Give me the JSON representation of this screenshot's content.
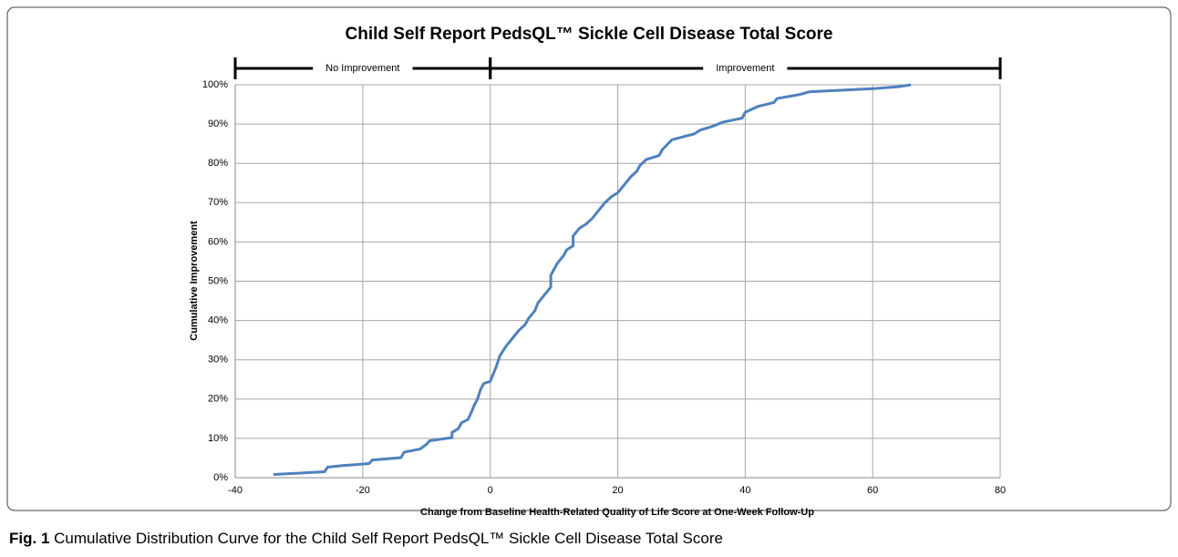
{
  "chart_data": {
    "type": "line",
    "title": "Child Self Report PedsQL™ Sickle Cell Disease Total Score",
    "xlabel": "Change from Baseline Health-Related Quality of Life Score at One-Week Follow-Up",
    "ylabel": "Cumulative Improvement",
    "annotations": [
      {
        "text": "No Improvement",
        "from": -40,
        "to": 0
      },
      {
        "text": "Improvement",
        "from": 0,
        "to": 80
      }
    ],
    "xlim": [
      -40,
      80
    ],
    "xticks": [
      -40,
      -20,
      0,
      20,
      40,
      60,
      80
    ],
    "ylim": [
      0,
      100
    ],
    "yticks": [
      {
        "value": 0,
        "label": "0%"
      },
      {
        "value": 10,
        "label": "10%"
      },
      {
        "value": 20,
        "label": "20%"
      },
      {
        "value": 30,
        "label": "30%"
      },
      {
        "value": 40,
        "label": "40%"
      },
      {
        "value": 50,
        "label": "50%"
      },
      {
        "value": 60,
        "label": "60%"
      },
      {
        "value": 70,
        "label": "70%"
      },
      {
        "value": 80,
        "label": "80%"
      },
      {
        "value": 90,
        "label": "90%"
      },
      {
        "value": 100,
        "label": "100%"
      }
    ],
    "grid": true,
    "series": [
      {
        "name": "Child Self Report",
        "color": "#4f81bd",
        "x": [
          -34,
          -26,
          -25.5,
          -23,
          -19,
          -18.5,
          -14,
          -13.5,
          -11,
          -10,
          -9.5,
          -6,
          -6,
          -5,
          -4.5,
          -3.5,
          -3,
          -2.5,
          -2,
          -1.5,
          -1,
          0,
          0.5,
          1,
          1.5,
          2.5,
          3.5,
          4.5,
          5.5,
          6,
          7,
          7.5,
          8.5,
          9.5,
          9.5,
          10.5,
          11.5,
          12,
          13,
          13,
          14,
          15,
          16,
          17,
          18,
          19,
          20,
          21,
          22,
          23,
          23.5,
          24.5,
          26.5,
          27,
          28.5,
          32,
          33,
          35,
          36.5,
          39.5,
          40,
          42,
          44.5,
          45,
          48.5,
          50,
          60,
          64,
          66
        ],
        "values": [
          0.8,
          1.5,
          2.7,
          3.1,
          3.6,
          4.5,
          5.1,
          6.5,
          7.3,
          8.5,
          9.4,
          10.2,
          11.5,
          12.5,
          14,
          14.8,
          16.5,
          18.5,
          20,
          22.5,
          24,
          24.5,
          26.5,
          28.5,
          31,
          33.5,
          35.5,
          37.5,
          39,
          40.5,
          42.5,
          44.5,
          46.5,
          48.5,
          51.5,
          54.5,
          56.5,
          58,
          59,
          61.5,
          63.5,
          64.5,
          66,
          68,
          70,
          71.5,
          72.5,
          74.5,
          76.5,
          78,
          79.5,
          81,
          82,
          83.5,
          86,
          87.5,
          88.5,
          89.5,
          90.5,
          91.5,
          93,
          94.5,
          95.5,
          96.5,
          97.5,
          98.2,
          99,
          99.5,
          100
        ]
      }
    ]
  },
  "caption": {
    "label": "Fig. 1",
    "text": "Cumulative Distribution Curve for the Child Self Report PedsQL™ Sickle Cell Disease Total Score"
  }
}
